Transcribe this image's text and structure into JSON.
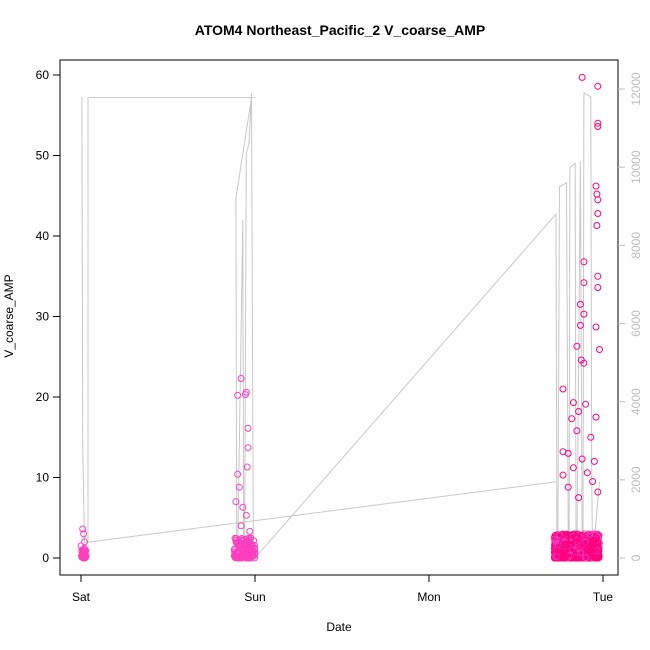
{
  "chart_data": {
    "type": "scatter",
    "title": "ATOM4 Northeast_Pacific_2 V_coarse_AMP",
    "xlabel": "Date",
    "ylabel": "V_coarse_AMP",
    "x_ticks": [
      "Sat",
      "Sun",
      "Mon",
      "Tue"
    ],
    "ylim": [
      0,
      60
    ],
    "y_ticks": [
      "0",
      "10",
      "20",
      "30",
      "40",
      "50",
      "60"
    ],
    "ylim_right": [
      0,
      12000
    ],
    "y_ticks_right": [
      "0",
      "2000",
      "4000",
      "6000",
      "8000",
      "10000",
      "12000"
    ],
    "x_range_days": [
      0,
      3
    ],
    "points": {
      "x_units": "days since Sat",
      "colors": [
        "#ff3fbf",
        "#ff007f"
      ],
      "clusters": [
        {
          "x_from": 0.0,
          "x_to": 0.03,
          "count": 30,
          "typical_max": 1.2,
          "extra": [
            [
              0.01,
              3.6
            ],
            [
              0.015,
              3.0
            ],
            [
              0.02,
              2.0
            ],
            [
              0.0,
              1.5
            ]
          ]
        },
        {
          "x_from": 0.88,
          "x_to": 1.0,
          "count": 140,
          "typical_max": 2.5,
          "extra": [
            [
              0.9,
              20.2
            ],
            [
              0.92,
              22.3
            ],
            [
              0.945,
              20.3
            ],
            [
              0.95,
              20.6
            ],
            [
              0.96,
              16.1
            ],
            [
              0.96,
              13.7
            ],
            [
              0.955,
              11.3
            ],
            [
              0.9,
              10.4
            ],
            [
              0.89,
              7.0
            ],
            [
              0.91,
              8.8
            ],
            [
              0.93,
              6.3
            ],
            [
              0.95,
              5.3
            ],
            [
              0.92,
              4.0
            ],
            [
              0.97,
              3.3
            ]
          ]
        },
        {
          "x_from": 2.72,
          "x_to": 2.98,
          "count": 900,
          "typical_max": 3.0,
          "extra": [
            [
              2.88,
              59.7
            ],
            [
              2.97,
              58.6
            ],
            [
              2.97,
              54.0
            ],
            [
              2.97,
              53.6
            ],
            [
              2.96,
              46.2
            ],
            [
              2.965,
              45.2
            ],
            [
              2.97,
              44.5
            ],
            [
              2.97,
              42.8
            ],
            [
              2.965,
              41.3
            ],
            [
              2.89,
              36.8
            ],
            [
              2.89,
              34.2
            ],
            [
              2.97,
              35.0
            ],
            [
              2.97,
              33.6
            ],
            [
              2.87,
              31.5
            ],
            [
              2.89,
              30.3
            ],
            [
              2.87,
              28.9
            ],
            [
              2.96,
              28.7
            ],
            [
              2.85,
              26.3
            ],
            [
              2.875,
              24.6
            ],
            [
              2.98,
              25.9
            ],
            [
              2.89,
              24.2
            ],
            [
              2.77,
              21.0
            ],
            [
              2.83,
              19.3
            ],
            [
              2.9,
              19.1
            ],
            [
              2.86,
              18.2
            ],
            [
              2.82,
              17.3
            ],
            [
              2.96,
              17.5
            ],
            [
              2.77,
              13.2
            ],
            [
              2.85,
              15.8
            ],
            [
              2.93,
              15.0
            ],
            [
              2.8,
              13.0
            ],
            [
              2.88,
              12.3
            ],
            [
              2.95,
              12.0
            ],
            [
              2.83,
              11.2
            ],
            [
              2.77,
              10.3
            ],
            [
              2.91,
              10.6
            ],
            [
              2.94,
              9.5
            ],
            [
              2.8,
              8.8
            ],
            [
              2.97,
              8.2
            ],
            [
              2.86,
              7.5
            ]
          ]
        }
      ]
    },
    "line": {
      "axis": "right",
      "color": "#c8c8c8",
      "x": [
        0.0,
        0.005,
        0.01,
        0.02,
        0.04,
        0.04,
        0.98,
        0.99,
        0.995,
        1.0,
        0.98,
        0.89,
        0.895,
        0.9,
        0.93,
        0.935,
        0.94,
        0.95,
        0.96,
        0.965,
        0.97,
        0.98,
        0.99,
        1.0,
        2.73,
        2.735,
        2.74,
        2.75,
        2.79,
        2.8,
        2.805,
        2.81,
        2.84,
        2.845,
        2.85,
        2.87,
        2.88,
        2.885,
        2.89,
        2.93,
        2.935,
        2.94,
        2.98
      ],
      "y": [
        11780,
        11780,
        2900,
        400,
        400,
        11780,
        11780,
        11780,
        11780,
        11780,
        11780,
        9200,
        300,
        0,
        8650,
        200,
        0,
        10350,
        10500,
        10600,
        11000,
        11900,
        400,
        0,
        8800,
        700,
        0,
        9500,
        9600,
        700,
        0,
        10000,
        10100,
        600,
        0,
        10150,
        400,
        0,
        11900,
        11800,
        2100,
        0,
        1950
      ],
      "trend": [
        [
          0.03,
          400
        ],
        [
          2.73,
          1950
        ]
      ]
    }
  }
}
